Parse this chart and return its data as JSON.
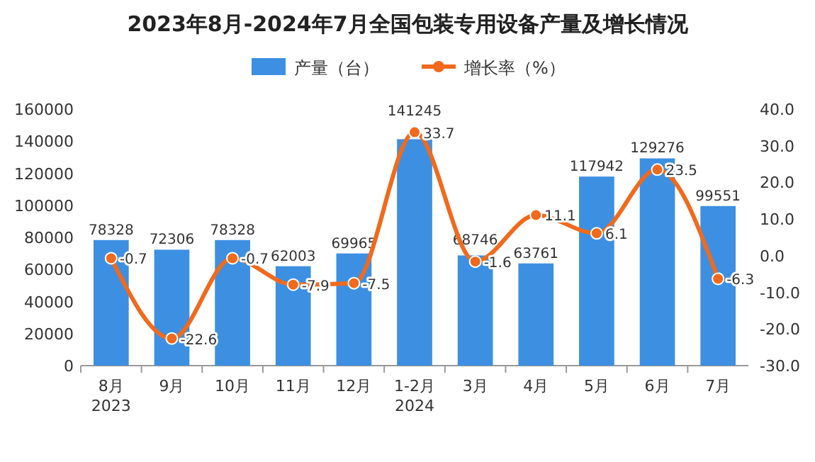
{
  "chart_data": {
    "type": "bar",
    "title": "2023年8月-2024年7月全国包装专用设备产量及增长情况",
    "categories": [
      "8月\n2023",
      "9月",
      "10月",
      "11月",
      "12月",
      "1-2月\n2024",
      "3月",
      "4月",
      "5月",
      "6月",
      "7月"
    ],
    "series": [
      {
        "name": "产量（台）",
        "color": "#3d8fe2",
        "values": [
          78328,
          72306,
          78328,
          62003,
          69965,
          141245,
          68746,
          63761,
          117942,
          129276,
          99551
        ]
      },
      {
        "name": "增长率（%）",
        "type": "line",
        "axis": "y2",
        "color": "#f06a1e",
        "marker": "circle",
        "values": [
          -0.7,
          -22.6,
          -0.7,
          -7.9,
          -7.5,
          33.7,
          -1.6,
          11.1,
          6.1,
          23.5,
          -6.3
        ]
      }
    ],
    "ylim": [
      0,
      160000
    ],
    "yticks": [
      0,
      20000,
      40000,
      60000,
      80000,
      100000,
      120000,
      140000,
      160000
    ],
    "y2lim": [
      -30,
      40
    ],
    "y2ticks": [
      {
        "value": -30,
        "label": "-30.0"
      },
      {
        "value": -20,
        "label": "-20.0"
      },
      {
        "value": -10,
        "label": "-10.0"
      },
      {
        "value": 0,
        "label": "0.0"
      },
      {
        "value": 10,
        "label": "10.0"
      },
      {
        "value": 20,
        "label": "20.0"
      },
      {
        "value": 30,
        "label": "30.0"
      },
      {
        "value": 40,
        "label": "40.0"
      }
    ],
    "data_labels": true,
    "legend": "top"
  }
}
